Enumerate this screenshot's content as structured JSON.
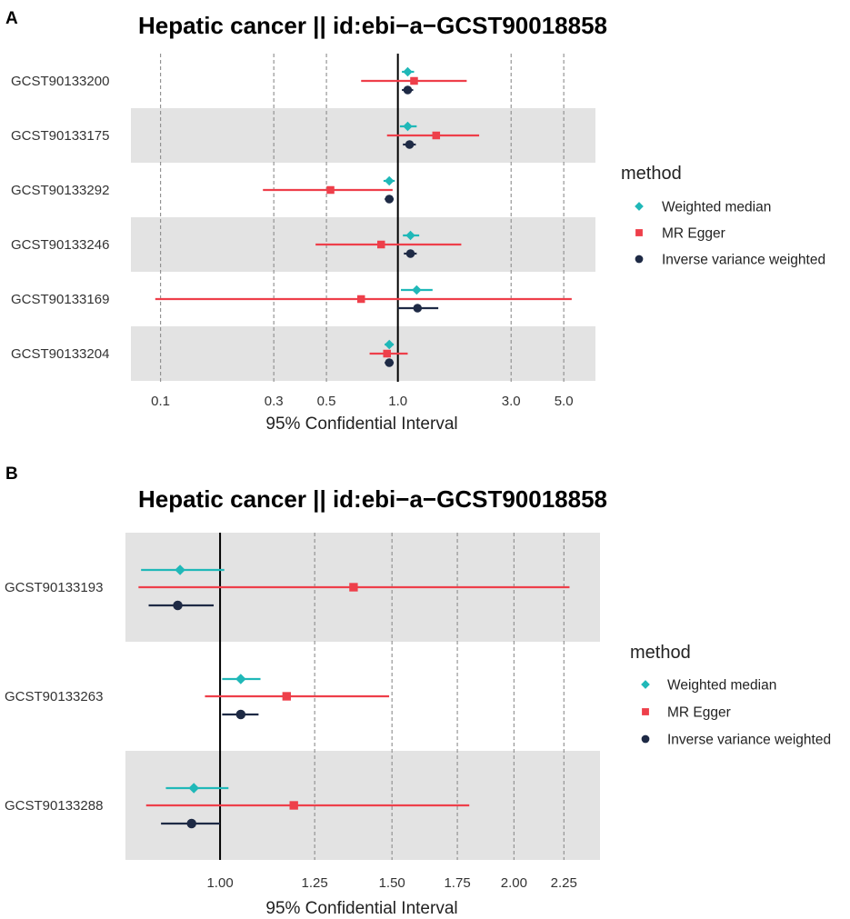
{
  "colors": {
    "weighted_median": "#20B8B8",
    "mr_egger": "#EE3F4A",
    "ivw": "#1E2A45",
    "band": "#E3E3E3",
    "grid": "#8C8C8C",
    "refline": "#000000"
  },
  "legend": {
    "title": "method",
    "items": [
      {
        "key": "weighted_median",
        "label": "Weighted median",
        "shape": "diamond"
      },
      {
        "key": "mr_egger",
        "label": "MR Egger",
        "shape": "square"
      },
      {
        "key": "ivw",
        "label": "Inverse variance weighted",
        "shape": "circle"
      }
    ]
  },
  "chart_data": [
    {
      "panel": "A",
      "type": "forest",
      "title": "Hepatic cancer || id:ebi−a−GCST90018858",
      "xlabel": "95% Confidential Interval",
      "xscale": "log",
      "xlim": [
        0.075,
        6.8
      ],
      "xticks": [
        0.1,
        0.3,
        0.5,
        1.0,
        3.0,
        5.0
      ],
      "xtick_labels": [
        "0.1",
        "0.3",
        "0.5",
        "1.0",
        "3.0",
        "5.0"
      ],
      "refline": 1.0,
      "rows": [
        {
          "label": "GCST90133200",
          "band": false,
          "estimates": {
            "weighted_median": {
              "or": 1.1,
              "lo": 1.04,
              "hi": 1.17
            },
            "mr_egger": {
              "or": 1.17,
              "lo": 0.7,
              "hi": 1.95
            },
            "ivw": {
              "or": 1.1,
              "lo": 1.04,
              "hi": 1.16
            }
          }
        },
        {
          "label": "GCST90133175",
          "band": true,
          "estimates": {
            "weighted_median": {
              "or": 1.1,
              "lo": 1.02,
              "hi": 1.2
            },
            "mr_egger": {
              "or": 1.45,
              "lo": 0.9,
              "hi": 2.2
            },
            "ivw": {
              "or": 1.12,
              "lo": 1.05,
              "hi": 1.19
            }
          }
        },
        {
          "label": "GCST90133292",
          "band": false,
          "estimates": {
            "weighted_median": {
              "or": 0.92,
              "lo": 0.87,
              "hi": 0.97
            },
            "mr_egger": {
              "or": 0.52,
              "lo": 0.27,
              "hi": 0.95
            },
            "ivw": {
              "or": 0.92,
              "lo": 0.88,
              "hi": 0.96
            }
          }
        },
        {
          "label": "GCST90133246",
          "band": true,
          "estimates": {
            "weighted_median": {
              "or": 1.13,
              "lo": 1.05,
              "hi": 1.23
            },
            "mr_egger": {
              "or": 0.85,
              "lo": 0.45,
              "hi": 1.85
            },
            "ivw": {
              "or": 1.13,
              "lo": 1.06,
              "hi": 1.2
            }
          }
        },
        {
          "label": "GCST90133169",
          "band": false,
          "estimates": {
            "weighted_median": {
              "or": 1.2,
              "lo": 1.03,
              "hi": 1.4
            },
            "mr_egger": {
              "or": 0.7,
              "lo": 0.095,
              "hi": 5.4
            },
            "ivw": {
              "or": 1.21,
              "lo": 1.0,
              "hi": 1.48
            }
          }
        },
        {
          "label": "GCST90133204",
          "band": true,
          "estimates": {
            "weighted_median": {
              "or": 0.92,
              "lo": 0.88,
              "hi": 0.96
            },
            "mr_egger": {
              "or": 0.9,
              "lo": 0.76,
              "hi": 1.1
            },
            "ivw": {
              "or": 0.92,
              "lo": 0.88,
              "hi": 0.96
            }
          }
        }
      ]
    },
    {
      "panel": "B",
      "type": "forest",
      "title": "Hepatic cancer || id:ebi−a−GCST90018858",
      "xlabel": "95% Confidential Interval",
      "xscale": "log",
      "xlim": [
        0.8,
        2.45
      ],
      "xticks": [
        1.0,
        1.25,
        1.5,
        1.75,
        2.0,
        2.25
      ],
      "xtick_labels": [
        "1.00",
        "1.25",
        "1.50",
        "1.75",
        "2.00",
        "2.25"
      ],
      "refline": 1.0,
      "rows": [
        {
          "label": "GCST90133193",
          "band": true,
          "estimates": {
            "weighted_median": {
              "or": 0.91,
              "lo": 0.83,
              "hi": 1.01
            },
            "mr_egger": {
              "or": 1.37,
              "lo": 0.825,
              "hi": 2.28
            },
            "ivw": {
              "or": 0.905,
              "lo": 0.845,
              "hi": 0.985
            }
          }
        },
        {
          "label": "GCST90133263",
          "band": false,
          "estimates": {
            "weighted_median": {
              "or": 1.05,
              "lo": 1.005,
              "hi": 1.1
            },
            "mr_egger": {
              "or": 1.17,
              "lo": 0.965,
              "hi": 1.49
            },
            "ivw": {
              "or": 1.05,
              "lo": 1.005,
              "hi": 1.095
            }
          }
        },
        {
          "label": "GCST90133288",
          "band": true,
          "estimates": {
            "weighted_median": {
              "or": 0.94,
              "lo": 0.88,
              "hi": 1.02
            },
            "mr_egger": {
              "or": 1.19,
              "lo": 0.84,
              "hi": 1.8
            },
            "ivw": {
              "or": 0.935,
              "lo": 0.87,
              "hi": 1.0
            }
          }
        }
      ]
    }
  ]
}
